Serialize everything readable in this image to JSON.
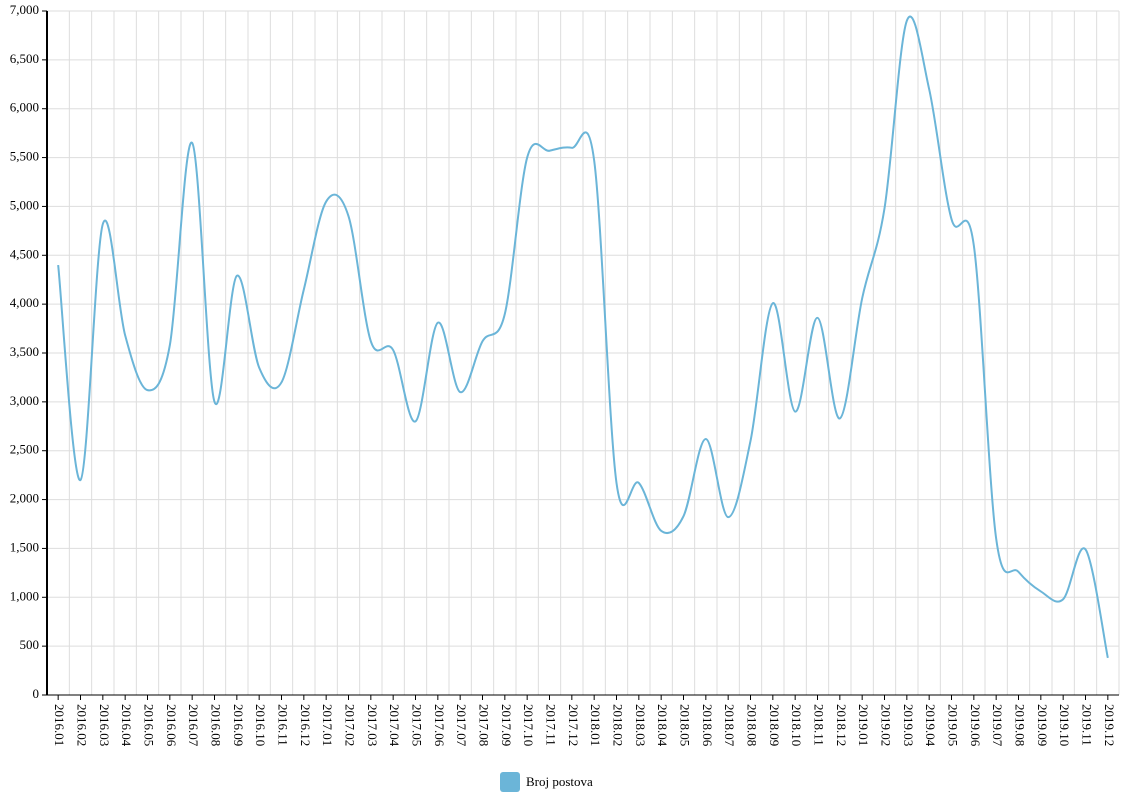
{
  "chart_data": {
    "type": "line",
    "categories": [
      "2016.01",
      "2016.02",
      "2016.03",
      "2016.04",
      "2016.05",
      "2016.06",
      "2016.07",
      "2016.08",
      "2016.09",
      "2016.10",
      "2016.11",
      "2016.12",
      "2017.01",
      "2017.02",
      "2017.03",
      "2017.04",
      "2017.05",
      "2017.06",
      "2017.07",
      "2017.08",
      "2017.09",
      "2017.10",
      "2017.11",
      "2017.12",
      "2018.01",
      "2018.02",
      "2018.03",
      "2018.04",
      "2018.05",
      "2018.06",
      "2018.07",
      "2018.08",
      "2018.09",
      "2018.10",
      "2018.11",
      "2018.12",
      "2019.01",
      "2019.02",
      "2019.03",
      "2019.04",
      "2019.05",
      "2019.06",
      "2019.07",
      "2019.08",
      "2019.09",
      "2019.10",
      "2019.11",
      "2019.12"
    ],
    "series": [
      {
        "name": "Broj postova",
        "color": "#6bb5d8",
        "values": [
          4400,
          2200,
          4820,
          3680,
          3120,
          3580,
          5650,
          3000,
          4290,
          3350,
          3200,
          4150,
          5050,
          4900,
          3620,
          3530,
          2800,
          3810,
          3100,
          3620,
          3900,
          5500,
          5570,
          5600,
          5470,
          2170,
          2170,
          1680,
          1830,
          2620,
          1820,
          2600,
          4010,
          2900,
          3860,
          2830,
          4060,
          4980,
          6900,
          6200,
          4870,
          4600,
          1600,
          1260,
          1060,
          980,
          1490,
          380
        ]
      }
    ],
    "ylim": [
      0,
      7000
    ],
    "yticks": [
      0,
      500,
      {
        "value": 1000,
        "label": "1,000"
      },
      {
        "value": 1500,
        "label": "1,500"
      },
      {
        "value": 2000,
        "label": "2,000"
      },
      {
        "value": 2500,
        "label": "2,500"
      },
      {
        "value": 3000,
        "label": "3,000"
      },
      {
        "value": 3500,
        "label": "3,500"
      },
      {
        "value": 4000,
        "label": "4,000"
      },
      {
        "value": 4500,
        "label": "4,500"
      },
      {
        "value": 5000,
        "label": "5,000"
      },
      {
        "value": 5500,
        "label": "5,500"
      },
      {
        "value": 6000,
        "label": "6,000"
      },
      {
        "value": 6500,
        "label": "6,500"
      },
      {
        "value": 7000,
        "label": "7,000"
      }
    ],
    "grid": true,
    "legend": "bottom"
  }
}
